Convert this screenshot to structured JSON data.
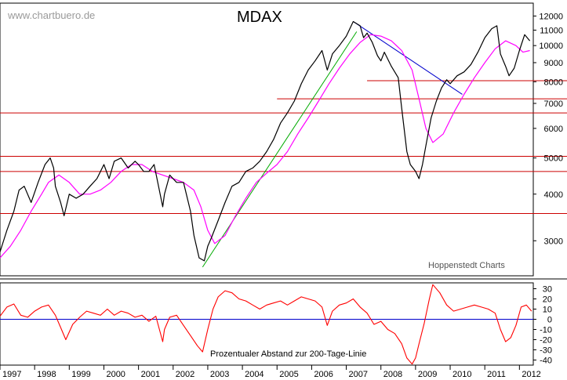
{
  "chart_data": [
    {
      "type": "line",
      "title": "MDAX",
      "watermark": "www.chartbuero.de",
      "credit": "Hoppenstedt Charts",
      "yscale": "log",
      "ylim": [
        2500,
        12500
      ],
      "xlim": [
        1997.0,
        2012.4
      ],
      "grid": false,
      "yticks": [
        3000,
        4000,
        5000,
        6000,
        7000,
        8000,
        9000,
        10000,
        11000,
        12000
      ],
      "xticks": [
        "1997",
        "1998",
        "1999",
        "2000",
        "2001",
        "2002",
        "2003",
        "2004",
        "2005",
        "2006",
        "2007",
        "2008",
        "2009",
        "2010",
        "2011",
        "2012"
      ],
      "series": [
        {
          "role": "price",
          "color": "#000000",
          "x": [
            1997.0,
            1997.2,
            1997.4,
            1997.55,
            1997.7,
            1997.9,
            1998.1,
            1998.3,
            1998.45,
            1998.55,
            1998.6,
            1998.75,
            1998.85,
            1999.0,
            1999.2,
            1999.4,
            1999.6,
            1999.8,
            2000.0,
            2000.15,
            2000.3,
            2000.5,
            2000.7,
            2000.9,
            2001.0,
            2001.15,
            2001.3,
            2001.45,
            2001.7,
            2001.75,
            2001.9,
            2002.1,
            2002.3,
            2002.5,
            2002.6,
            2002.75,
            2002.9,
            2003.0,
            2003.1,
            2003.3,
            2003.5,
            2003.7,
            2003.9,
            2004.1,
            2004.3,
            2004.5,
            2004.7,
            2004.9,
            2005.1,
            2005.3,
            2005.5,
            2005.7,
            2005.9,
            2006.1,
            2006.3,
            2006.45,
            2006.6,
            2006.8,
            2007.0,
            2007.2,
            2007.4,
            2007.5,
            2007.6,
            2007.75,
            2007.9,
            2008.0,
            2008.1,
            2008.3,
            2008.5,
            2008.6,
            2008.75,
            2008.85,
            2009.0,
            2009.1,
            2009.2,
            2009.3,
            2009.45,
            2009.6,
            2009.75,
            2009.9,
            2010.0,
            2010.2,
            2010.4,
            2010.6,
            2010.8,
            2011.0,
            2011.2,
            2011.35,
            2011.45,
            2011.6,
            2011.7,
            2011.85,
            2012.0,
            2012.15,
            2012.3
          ],
          "values": [
            2800,
            3200,
            3600,
            4100,
            4200,
            3800,
            4300,
            4800,
            5000,
            4700,
            4200,
            3800,
            3500,
            4000,
            3900,
            4000,
            4200,
            4400,
            4800,
            4400,
            4900,
            5000,
            4700,
            4900,
            4800,
            4600,
            4600,
            4800,
            3700,
            4000,
            4500,
            4300,
            4300,
            3600,
            3100,
            2700,
            2650,
            2900,
            3050,
            3400,
            3800,
            4200,
            4300,
            4600,
            4700,
            4900,
            5200,
            5600,
            6200,
            6600,
            7100,
            7900,
            8600,
            9100,
            9700,
            8600,
            9500,
            10000,
            10600,
            11600,
            11300,
            10500,
            10800,
            10200,
            9400,
            9100,
            9600,
            8800,
            8200,
            6800,
            5200,
            4800,
            4600,
            4400,
            4800,
            5400,
            6400,
            7100,
            7700,
            8100,
            7900,
            8300,
            8500,
            8900,
            9600,
            10500,
            11100,
            11300,
            9500,
            8800,
            8300,
            8700,
            9700,
            10700,
            10300
          ]
        },
        {
          "role": "200-day moving average",
          "color": "#ff00ff",
          "x": [
            1997.0,
            1997.3,
            1997.6,
            1997.9,
            1998.2,
            1998.4,
            1998.7,
            1999.0,
            1999.3,
            1999.6,
            1999.9,
            2000.2,
            2000.5,
            2000.8,
            2001.1,
            2001.4,
            2001.7,
            2002.0,
            2002.3,
            2002.6,
            2002.8,
            2003.0,
            2003.2,
            2003.5,
            2003.8,
            2004.1,
            2004.4,
            2004.7,
            2005.0,
            2005.3,
            2005.6,
            2005.9,
            2006.2,
            2006.5,
            2006.8,
            2007.1,
            2007.4,
            2007.7,
            2008.0,
            2008.3,
            2008.6,
            2008.9,
            2009.1,
            2009.3,
            2009.5,
            2009.8,
            2010.1,
            2010.4,
            2010.7,
            2011.0,
            2011.3,
            2011.6,
            2011.9,
            2012.1,
            2012.3
          ],
          "values": [
            2700,
            2900,
            3200,
            3600,
            4000,
            4300,
            4500,
            4300,
            4000,
            4000,
            4100,
            4300,
            4600,
            4800,
            4800,
            4600,
            4500,
            4400,
            4300,
            4100,
            3700,
            3200,
            2950,
            3100,
            3500,
            3900,
            4300,
            4550,
            4800,
            5200,
            5800,
            6400,
            7100,
            7900,
            8700,
            9500,
            10200,
            10700,
            10600,
            10300,
            9700,
            8600,
            7200,
            6000,
            5500,
            5800,
            6600,
            7400,
            8200,
            9000,
            9800,
            10300,
            10000,
            9600,
            9700
          ]
        }
      ],
      "annotations": [
        {
          "type": "horizontal-line",
          "value": 3550,
          "color": "#cc0000"
        },
        {
          "type": "horizontal-line",
          "value": 4600,
          "color": "#cc0000"
        },
        {
          "type": "horizontal-line",
          "value": 5050,
          "color": "#cc0000"
        },
        {
          "type": "horizontal-line",
          "value": 6600,
          "color": "#cc0000"
        },
        {
          "type": "horizontal-line",
          "value": 7200,
          "color": "#cc0000",
          "from": 2005.0
        },
        {
          "type": "horizontal-line",
          "value": 8050,
          "color": "#cc0000",
          "from": 2007.6
        },
        {
          "type": "trendline",
          "color": "#00aa00",
          "x": [
            2002.85,
            2007.3
          ],
          "values": [
            2550,
            10900
          ]
        },
        {
          "type": "trendline",
          "color": "#0000cc",
          "x": [
            2007.2,
            2010.35
          ],
          "values": [
            11600,
            7400
          ]
        }
      ]
    },
    {
      "type": "line",
      "caption": "Prozentualer Abstand zur 200-Tage-Linie",
      "ylim": [
        -45,
        35
      ],
      "yticks": [
        30,
        20,
        10,
        0,
        -10,
        -20,
        -30,
        -40
      ],
      "zero_line_color": "#0000cc",
      "series": [
        {
          "role": "percent distance to 200-day line",
          "color": "#ff0000",
          "x": [
            1997.0,
            1997.2,
            1997.4,
            1997.6,
            1997.8,
            1998.0,
            1998.2,
            1998.4,
            1998.6,
            1998.75,
            1998.9,
            1999.1,
            1999.3,
            1999.5,
            1999.7,
            1999.9,
            2000.1,
            2000.3,
            2000.5,
            2000.7,
            2000.9,
            2001.1,
            2001.3,
            2001.5,
            2001.7,
            2001.75,
            2001.9,
            2002.1,
            2002.3,
            2002.5,
            2002.7,
            2002.85,
            2003.0,
            2003.15,
            2003.3,
            2003.5,
            2003.7,
            2003.9,
            2004.1,
            2004.3,
            2004.5,
            2004.7,
            2004.9,
            2005.1,
            2005.3,
            2005.5,
            2005.7,
            2005.9,
            2006.1,
            2006.3,
            2006.45,
            2006.6,
            2006.8,
            2007.0,
            2007.2,
            2007.4,
            2007.6,
            2007.8,
            2008.0,
            2008.2,
            2008.4,
            2008.6,
            2008.75,
            2008.9,
            2009.0,
            2009.1,
            2009.25,
            2009.4,
            2009.5,
            2009.7,
            2009.9,
            2010.1,
            2010.3,
            2010.5,
            2010.7,
            2010.9,
            2011.1,
            2011.3,
            2011.45,
            2011.6,
            2011.75,
            2011.9,
            2012.05,
            2012.2,
            2012.35
          ],
          "values": [
            3,
            12,
            15,
            4,
            2,
            8,
            12,
            14,
            4,
            -8,
            -20,
            -5,
            2,
            8,
            6,
            4,
            10,
            4,
            8,
            6,
            2,
            4,
            -2,
            3,
            -22,
            -10,
            2,
            4,
            -6,
            -16,
            -26,
            -32,
            -10,
            10,
            22,
            28,
            26,
            20,
            18,
            14,
            10,
            14,
            16,
            18,
            14,
            18,
            22,
            20,
            18,
            12,
            -6,
            8,
            14,
            16,
            20,
            12,
            6,
            -5,
            -2,
            -10,
            -14,
            -24,
            -38,
            -44,
            -38,
            -24,
            -4,
            20,
            34,
            26,
            14,
            8,
            10,
            12,
            14,
            12,
            10,
            6,
            -10,
            -22,
            -18,
            -6,
            12,
            14,
            8
          ]
        }
      ]
    }
  ]
}
